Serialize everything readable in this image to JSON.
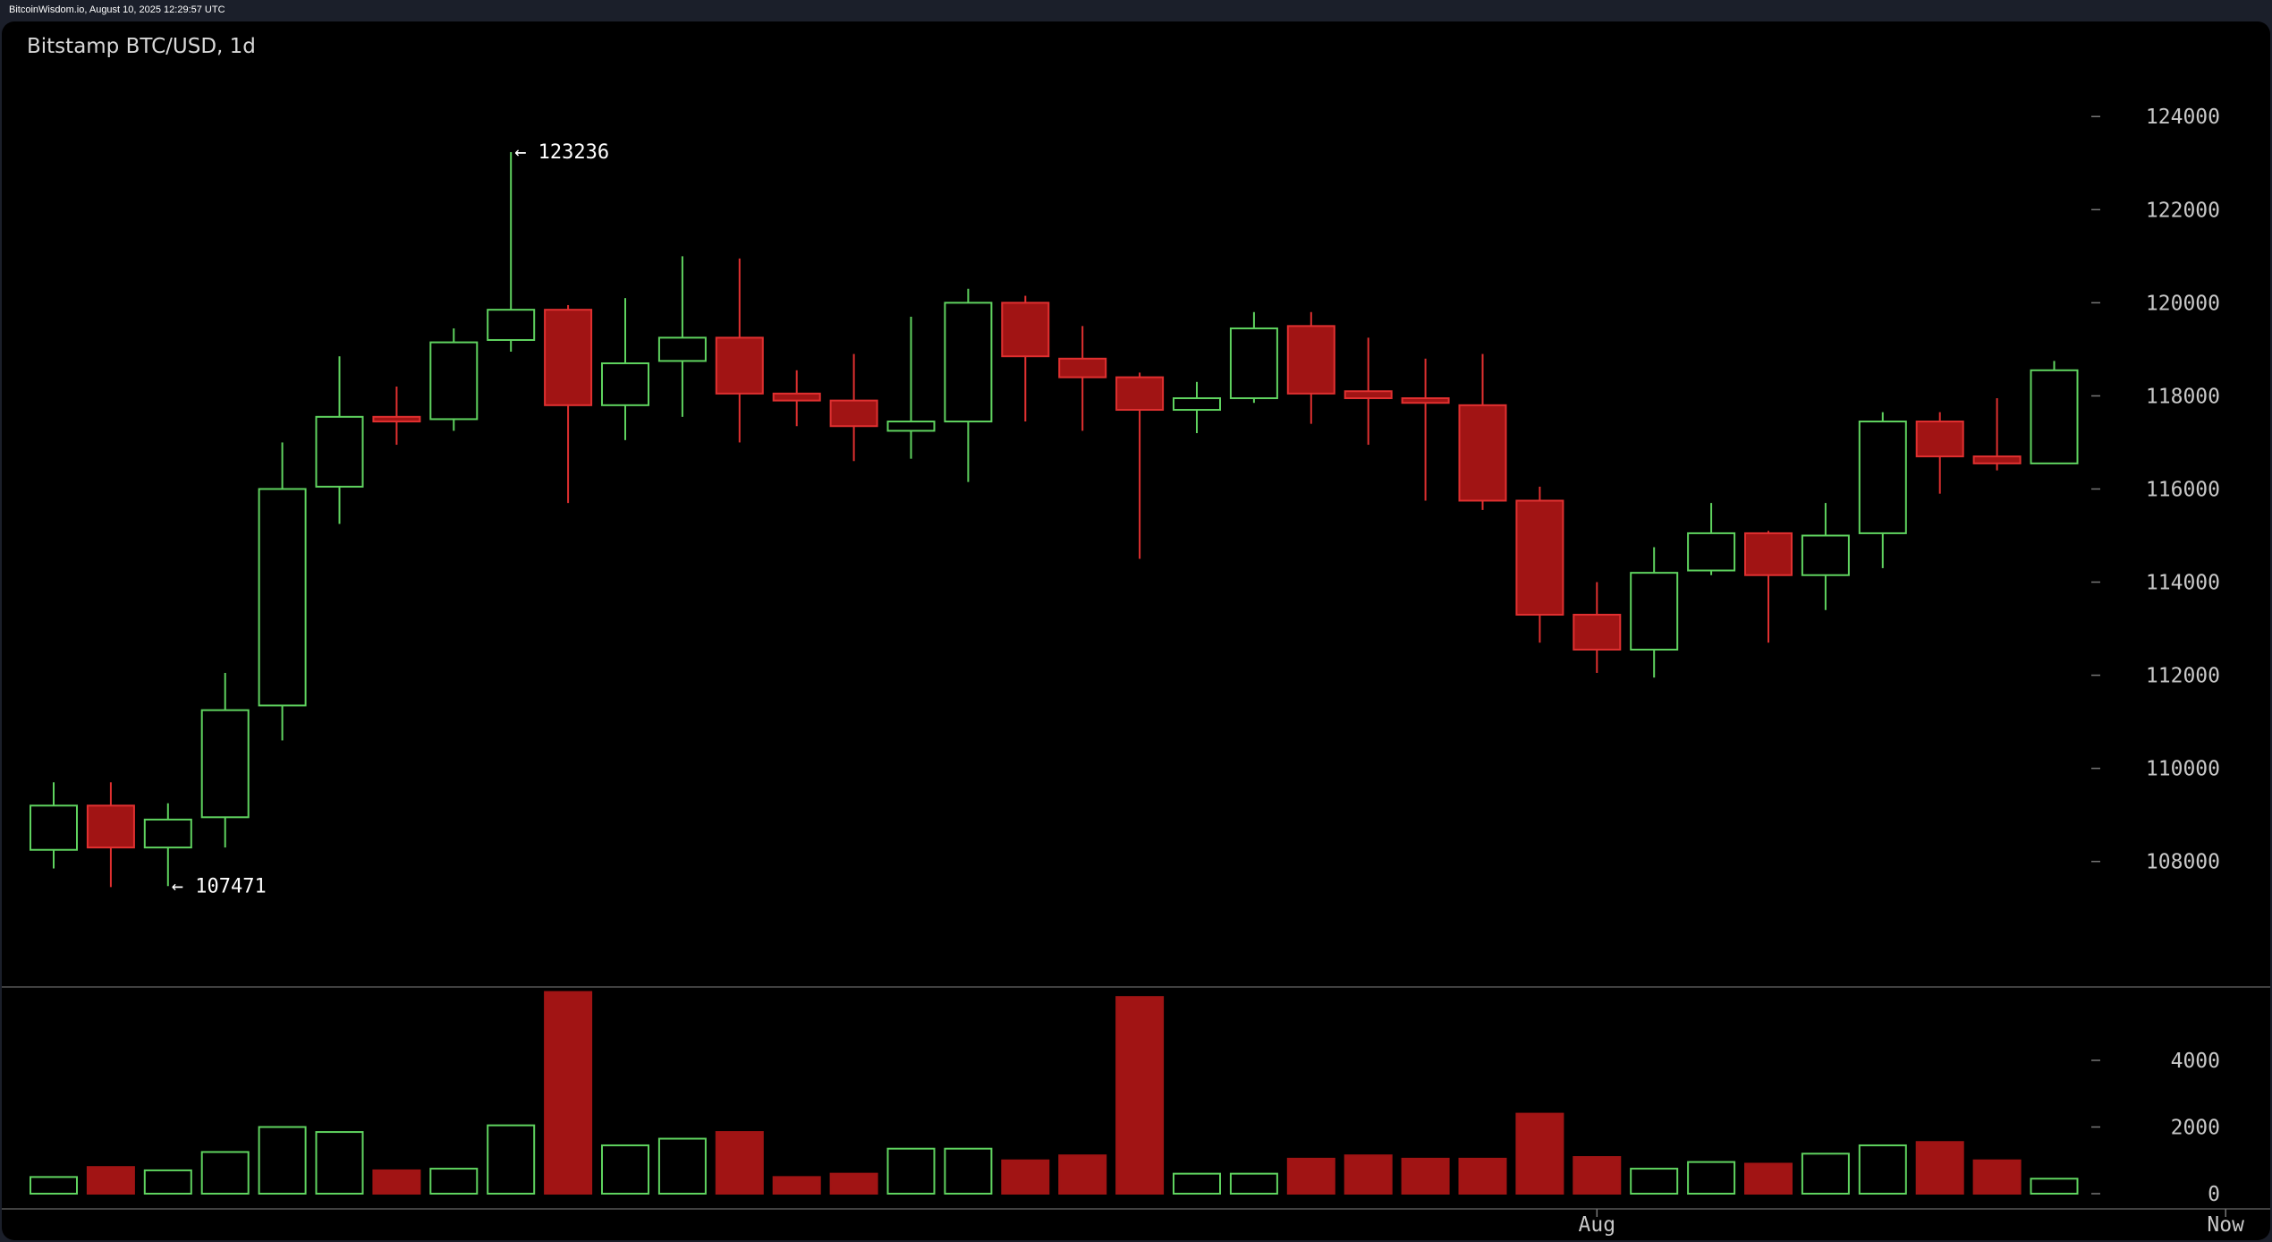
{
  "header": {
    "text": "BitcoinWisdom.io, August 10, 2025 12:29:57 UTC"
  },
  "colors": {
    "up": "#5fd35f",
    "down": "#a11414",
    "down_stroke": "#e03030",
    "axis": "#777777",
    "background": "#000000"
  },
  "chart_data": {
    "type": "candlestick",
    "title": "Bitstamp BTC/USD, 1d",
    "price_axis": {
      "min": 106000,
      "max": 124800,
      "ticks": [
        108000,
        110000,
        112000,
        114000,
        116000,
        118000,
        120000,
        122000,
        124000
      ]
    },
    "volume_axis": {
      "min": 0,
      "max": 6200,
      "ticks": [
        0,
        2000,
        4000
      ]
    },
    "x_labels": [
      {
        "label": "Aug",
        "index": 27
      },
      {
        "label": "Now",
        "index": 38
      }
    ],
    "annotations": [
      {
        "text": "← 123236",
        "index": 8,
        "value": 123236
      },
      {
        "text": "← 107471",
        "index": 2,
        "value": 107471
      }
    ],
    "candles": [
      {
        "o": 108250,
        "h": 109700,
        "l": 107850,
        "c": 109200,
        "v": 500
      },
      {
        "o": 109200,
        "h": 109700,
        "l": 107450,
        "c": 108300,
        "v": 800
      },
      {
        "o": 108300,
        "h": 109250,
        "l": 107471,
        "c": 108900,
        "v": 700
      },
      {
        "o": 108950,
        "h": 112050,
        "l": 108300,
        "c": 111250,
        "v": 1250
      },
      {
        "o": 111350,
        "h": 117000,
        "l": 110600,
        "c": 116000,
        "v": 2000
      },
      {
        "o": 116050,
        "h": 118850,
        "l": 115250,
        "c": 117550,
        "v": 1850
      },
      {
        "o": 117550,
        "h": 118200,
        "l": 116950,
        "c": 117450,
        "v": 700
      },
      {
        "o": 117500,
        "h": 119450,
        "l": 117250,
        "c": 119150,
        "v": 750
      },
      {
        "o": 119200,
        "h": 123236,
        "l": 118950,
        "c": 119850,
        "v": 2050
      },
      {
        "o": 119850,
        "h": 119950,
        "l": 115700,
        "c": 117800,
        "v": 6050
      },
      {
        "o": 117800,
        "h": 120100,
        "l": 117050,
        "c": 118700,
        "v": 1450
      },
      {
        "o": 118750,
        "h": 121000,
        "l": 117550,
        "c": 119250,
        "v": 1650
      },
      {
        "o": 119250,
        "h": 120950,
        "l": 117000,
        "c": 118050,
        "v": 1850
      },
      {
        "o": 118050,
        "h": 118550,
        "l": 117350,
        "c": 117900,
        "v": 500
      },
      {
        "o": 117900,
        "h": 118900,
        "l": 116600,
        "c": 117350,
        "v": 600
      },
      {
        "o": 117250,
        "h": 119700,
        "l": 116650,
        "c": 117450,
        "v": 1350
      },
      {
        "o": 117450,
        "h": 120300,
        "l": 116150,
        "c": 120000,
        "v": 1350
      },
      {
        "o": 120000,
        "h": 120150,
        "l": 117450,
        "c": 118850,
        "v": 1000
      },
      {
        "o": 118800,
        "h": 119500,
        "l": 117250,
        "c": 118400,
        "v": 1150
      },
      {
        "o": 118400,
        "h": 118500,
        "l": 114500,
        "c": 117700,
        "v": 5900
      },
      {
        "o": 117700,
        "h": 118300,
        "l": 117200,
        "c": 117950,
        "v": 600
      },
      {
        "o": 117950,
        "h": 119800,
        "l": 117850,
        "c": 119450,
        "v": 600
      },
      {
        "o": 119500,
        "h": 119800,
        "l": 117400,
        "c": 118050,
        "v": 1050
      },
      {
        "o": 118100,
        "h": 119250,
        "l": 116950,
        "c": 117950,
        "v": 1150
      },
      {
        "o": 117950,
        "h": 118800,
        "l": 115750,
        "c": 117850,
        "v": 1050
      },
      {
        "o": 117800,
        "h": 118900,
        "l": 115550,
        "c": 115750,
        "v": 1050
      },
      {
        "o": 115750,
        "h": 116050,
        "l": 112700,
        "c": 113300,
        "v": 2400
      },
      {
        "o": 113300,
        "h": 114000,
        "l": 112050,
        "c": 112550,
        "v": 1100
      },
      {
        "o": 112550,
        "h": 114750,
        "l": 111950,
        "c": 114200,
        "v": 750
      },
      {
        "o": 114250,
        "h": 115700,
        "l": 114150,
        "c": 115050,
        "v": 950
      },
      {
        "o": 115050,
        "h": 115100,
        "l": 112700,
        "c": 114150,
        "v": 900
      },
      {
        "o": 114150,
        "h": 115700,
        "l": 113400,
        "c": 115000,
        "v": 1200
      },
      {
        "o": 115050,
        "h": 117650,
        "l": 114300,
        "c": 117450,
        "v": 1450
      },
      {
        "o": 117450,
        "h": 117650,
        "l": 115900,
        "c": 116700,
        "v": 1550
      },
      {
        "o": 116700,
        "h": 117950,
        "l": 116400,
        "c": 116550,
        "v": 1000
      },
      {
        "o": 116550,
        "h": 118750,
        "l": 116550,
        "c": 118550,
        "v": 450
      }
    ]
  }
}
